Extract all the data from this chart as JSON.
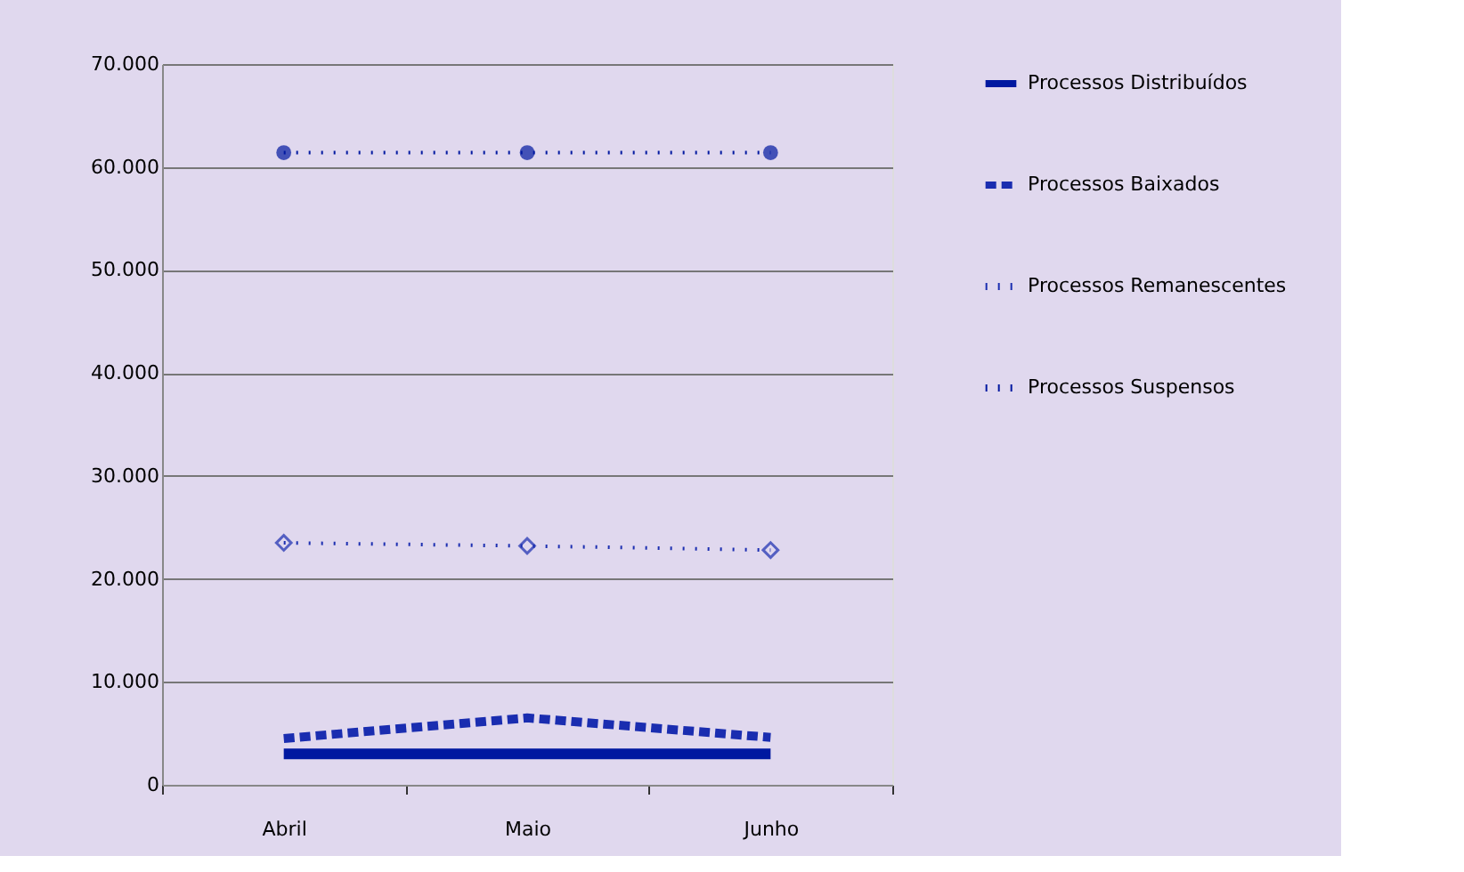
{
  "chart_data": {
    "type": "line",
    "categories": [
      "Abril",
      "Maio",
      "Junho"
    ],
    "series": [
      {
        "name": "Processos Distribuídos",
        "color": "#0018a0",
        "values": [
          3000,
          3000,
          3000
        ],
        "line_style": "solid",
        "marker": "none"
      },
      {
        "name": "Processos Baixados",
        "color": "#1a2db0",
        "values": [
          4500,
          6500,
          4600
        ],
        "line_style": "dashed",
        "marker": "none"
      },
      {
        "name": "Processos Remanescentes",
        "color": "#1a2db0",
        "values": [
          23500,
          23200,
          22800
        ],
        "line_style": "dotted",
        "marker": "diamond"
      },
      {
        "name": "Processos Suspensos",
        "color": "#0018a0",
        "values": [
          61400,
          61400,
          61400
        ],
        "line_style": "dotted",
        "marker": "circle"
      }
    ],
    "ylim": [
      0,
      70000
    ],
    "yticks": [
      0,
      {
        "value": 10000,
        "label": "10.000"
      },
      {
        "value": 20000,
        "label": "20.000"
      },
      {
        "value": 30000,
        "label": "30.000"
      },
      {
        "value": 40000,
        "label": "40.000"
      },
      {
        "value": 50000,
        "label": "50.000"
      },
      {
        "value": 60000,
        "label": "60.000"
      },
      {
        "value": 70000,
        "label": "70.000"
      }
    ],
    "grid": "y",
    "legend": "right"
  }
}
